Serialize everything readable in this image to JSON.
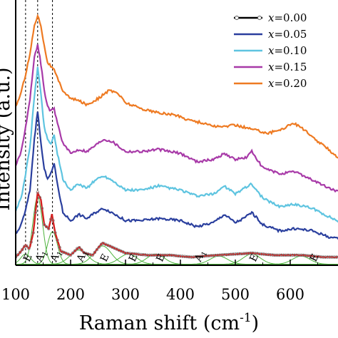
{
  "chart_data": {
    "type": "line",
    "xlabel": "Raman shift (cm",
    "xlabel_sup": "-1",
    "xlabel_close": ")",
    "ylabel": "Intensity (a.u.)",
    "xlim": [
      100,
      700
    ],
    "x_ticks": [
      "100",
      "200",
      "300",
      "400",
      "500",
      "600",
      "7"
    ],
    "y_ticks": "none",
    "grid": false,
    "legend_position": "top-right",
    "legend_prefix": "x",
    "series": [
      {
        "name": "=0.00",
        "color": "#000000",
        "marker": "open-circle",
        "fit_color": "#d42020",
        "points": [
          [
            100,
            0.04
          ],
          [
            110,
            0.07
          ],
          [
            118,
            0.1
          ],
          [
            125,
            0.08
          ],
          [
            132,
            0.16
          ],
          [
            140,
            0.36
          ],
          [
            146,
            0.32
          ],
          [
            152,
            0.2
          ],
          [
            160,
            0.18
          ],
          [
            166,
            0.25
          ],
          [
            172,
            0.16
          ],
          [
            182,
            0.07
          ],
          [
            200,
            0.05
          ],
          [
            215,
            0.09
          ],
          [
            225,
            0.06
          ],
          [
            240,
            0.05
          ],
          [
            258,
            0.11
          ],
          [
            275,
            0.09
          ],
          [
            300,
            0.06
          ],
          [
            340,
            0.05
          ],
          [
            380,
            0.05
          ],
          [
            420,
            0.04
          ],
          [
            470,
            0.05
          ],
          [
            530,
            0.06
          ],
          [
            570,
            0.05
          ],
          [
            620,
            0.05
          ],
          [
            660,
            0.04
          ],
          [
            700,
            0.04
          ]
        ]
      },
      {
        "name": "=0.05",
        "color": "#2a3f9e",
        "points": [
          [
            100,
            0.15
          ],
          [
            110,
            0.2
          ],
          [
            118,
            0.27
          ],
          [
            126,
            0.37
          ],
          [
            134,
            0.62
          ],
          [
            140,
            0.76
          ],
          [
            146,
            0.6
          ],
          [
            152,
            0.47
          ],
          [
            158,
            0.43
          ],
          [
            164,
            0.45
          ],
          [
            170,
            0.5
          ],
          [
            176,
            0.4
          ],
          [
            186,
            0.26
          ],
          [
            200,
            0.22
          ],
          [
            215,
            0.25
          ],
          [
            230,
            0.23
          ],
          [
            245,
            0.26
          ],
          [
            260,
            0.28
          ],
          [
            275,
            0.26
          ],
          [
            300,
            0.22
          ],
          [
            330,
            0.22
          ],
          [
            360,
            0.23
          ],
          [
            400,
            0.22
          ],
          [
            430,
            0.19
          ],
          [
            460,
            0.21
          ],
          [
            480,
            0.25
          ],
          [
            500,
            0.21
          ],
          [
            515,
            0.23
          ],
          [
            530,
            0.26
          ],
          [
            550,
            0.2
          ],
          [
            580,
            0.17
          ],
          [
            610,
            0.18
          ],
          [
            640,
            0.17
          ],
          [
            670,
            0.14
          ],
          [
            700,
            0.12
          ]
        ]
      },
      {
        "name": "=0.10",
        "color": "#5ec4e0",
        "points": [
          [
            100,
            0.27
          ],
          [
            110,
            0.33
          ],
          [
            118,
            0.45
          ],
          [
            126,
            0.58
          ],
          [
            134,
            0.83
          ],
          [
            140,
            0.98
          ],
          [
            146,
            0.84
          ],
          [
            152,
            0.68
          ],
          [
            158,
            0.62
          ],
          [
            164,
            0.6
          ],
          [
            170,
            0.64
          ],
          [
            176,
            0.55
          ],
          [
            186,
            0.42
          ],
          [
            200,
            0.37
          ],
          [
            215,
            0.4
          ],
          [
            230,
            0.38
          ],
          [
            245,
            0.42
          ],
          [
            260,
            0.44
          ],
          [
            275,
            0.42
          ],
          [
            300,
            0.37
          ],
          [
            330,
            0.37
          ],
          [
            360,
            0.39
          ],
          [
            400,
            0.37
          ],
          [
            430,
            0.34
          ],
          [
            460,
            0.35
          ],
          [
            480,
            0.39
          ],
          [
            500,
            0.35
          ],
          [
            515,
            0.38
          ],
          [
            530,
            0.4
          ],
          [
            550,
            0.33
          ],
          [
            580,
            0.29
          ],
          [
            610,
            0.3
          ],
          [
            640,
            0.28
          ],
          [
            670,
            0.24
          ],
          [
            700,
            0.2
          ]
        ]
      },
      {
        "name": "=0.15",
        "color": "#a83aa8",
        "points": [
          [
            100,
            0.49
          ],
          [
            110,
            0.56
          ],
          [
            118,
            0.68
          ],
          [
            126,
            0.82
          ],
          [
            134,
            1.02
          ],
          [
            140,
            1.09
          ],
          [
            146,
            0.99
          ],
          [
            152,
            0.86
          ],
          [
            158,
            0.78
          ],
          [
            164,
            0.76
          ],
          [
            170,
            0.77
          ],
          [
            176,
            0.7
          ],
          [
            186,
            0.6
          ],
          [
            200,
            0.55
          ],
          [
            215,
            0.57
          ],
          [
            230,
            0.56
          ],
          [
            245,
            0.59
          ],
          [
            260,
            0.62
          ],
          [
            275,
            0.61
          ],
          [
            300,
            0.56
          ],
          [
            330,
            0.56
          ],
          [
            360,
            0.57
          ],
          [
            400,
            0.55
          ],
          [
            430,
            0.51
          ],
          [
            460,
            0.52
          ],
          [
            480,
            0.55
          ],
          [
            500,
            0.52
          ],
          [
            520,
            0.53
          ],
          [
            530,
            0.56
          ],
          [
            550,
            0.48
          ],
          [
            580,
            0.45
          ],
          [
            610,
            0.46
          ],
          [
            640,
            0.42
          ],
          [
            670,
            0.38
          ],
          [
            700,
            0.35
          ]
        ]
      },
      {
        "name": "=0.20",
        "color": "#ee7a22",
        "points": [
          [
            100,
            0.78
          ],
          [
            110,
            0.85
          ],
          [
            118,
            0.94
          ],
          [
            126,
            1.04
          ],
          [
            134,
            1.18
          ],
          [
            140,
            1.23
          ],
          [
            146,
            1.18
          ],
          [
            152,
            1.08
          ],
          [
            158,
            1.0
          ],
          [
            164,
            0.98
          ],
          [
            170,
            0.96
          ],
          [
            176,
            0.92
          ],
          [
            186,
            0.86
          ],
          [
            200,
            0.82
          ],
          [
            215,
            0.81
          ],
          [
            230,
            0.79
          ],
          [
            250,
            0.82
          ],
          [
            270,
            0.86
          ],
          [
            285,
            0.85
          ],
          [
            300,
            0.8
          ],
          [
            330,
            0.77
          ],
          [
            360,
            0.75
          ],
          [
            390,
            0.74
          ],
          [
            410,
            0.72
          ],
          [
            440,
            0.7
          ],
          [
            470,
            0.68
          ],
          [
            500,
            0.69
          ],
          [
            530,
            0.67
          ],
          [
            560,
            0.65
          ],
          [
            585,
            0.67
          ],
          [
            605,
            0.7
          ],
          [
            620,
            0.68
          ],
          [
            640,
            0.63
          ],
          [
            670,
            0.57
          ],
          [
            700,
            0.5
          ]
        ]
      }
    ],
    "fit_components": {
      "color": "#4db33d",
      "peaks": [
        {
          "center": 118,
          "height": 0.05
        },
        {
          "center": 140,
          "height": 0.33
        },
        {
          "center": 167,
          "height": 0.16
        },
        {
          "center": 215,
          "height": 0.07
        },
        {
          "center": 258,
          "height": 0.09
        },
        {
          "center": 305,
          "height": 0.05
        },
        {
          "center": 355,
          "height": 0.05
        },
        {
          "center": 470,
          "height": 0.04
        },
        {
          "center": 530,
          "height": 0.05
        },
        {
          "center": 620,
          "height": 0.04
        }
      ]
    },
    "vertical_lines": [
      118,
      140,
      167
    ],
    "mode_labels": [
      {
        "x": 118,
        "main": "E",
        "sub": ""
      },
      {
        "x": 140,
        "main": "A",
        "sub": "1"
      },
      {
        "x": 167,
        "main": "A",
        "sub": "1"
      },
      {
        "x": 215,
        "main": "A",
        "sub": "1"
      },
      {
        "x": 258,
        "main": "E",
        "sub": ""
      },
      {
        "x": 310,
        "main": "E",
        "sub": ""
      },
      {
        "x": 360,
        "main": "E",
        "sub": ""
      },
      {
        "x": 430,
        "main": "A",
        "sub": "1"
      },
      {
        "x": 530,
        "main": "E",
        "sub": ""
      },
      {
        "x": 640,
        "main": "E",
        "sub": ""
      }
    ]
  }
}
